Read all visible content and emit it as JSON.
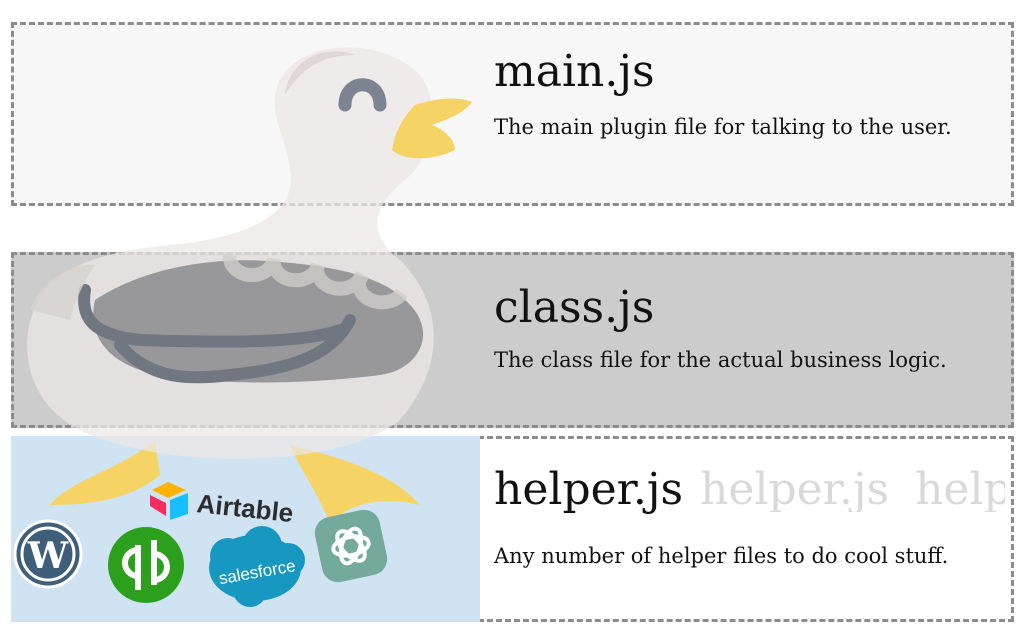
{
  "files": [
    {
      "title": "main.js",
      "description": "The main plugin file for talking to the user."
    },
    {
      "title": "class.js",
      "description": "The class file for the actual business logic."
    },
    {
      "title": "helper.js",
      "description": "Any number of helper files to do cool stuff."
    }
  ],
  "ghost_titles": [
    "helper.js",
    "help"
  ],
  "logos": {
    "airtable": "Airtable",
    "salesforce": "salesforce",
    "icons": [
      "wordpress-logo",
      "quickbooks-logo",
      "openai-logo"
    ]
  },
  "colors": {
    "panel_main": "#f7f7f7",
    "panel_class": "#cccccc",
    "logo_area": "#cfe3f2",
    "border": "#8c8c8c",
    "duck_beak": "#f6d365"
  }
}
